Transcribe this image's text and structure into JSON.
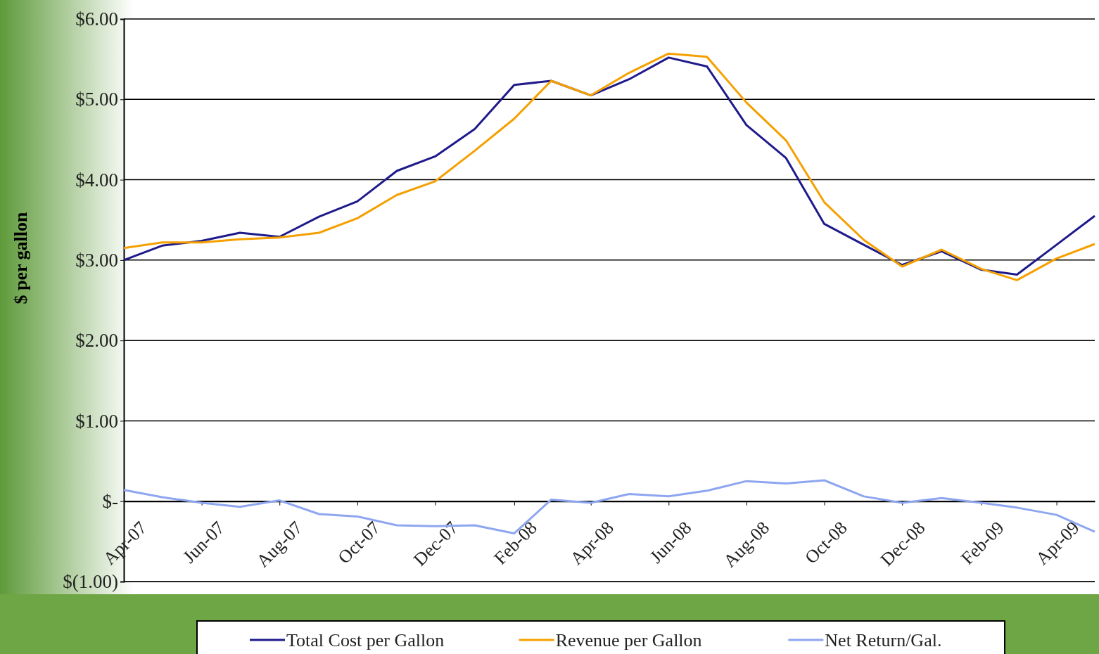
{
  "chart_data": {
    "type": "line",
    "ylabel": "$ per gallon",
    "x": [
      "2007-04",
      "2007-05",
      "2007-06",
      "2007-07",
      "2007-08",
      "2007-09",
      "2007-10",
      "2007-11",
      "2007-12",
      "2008-01",
      "2008-02",
      "2008-03",
      "2008-04",
      "2008-05",
      "2008-06",
      "2008-07",
      "2008-08",
      "2008-09",
      "2008-10",
      "2008-11",
      "2008-12",
      "2009-01",
      "2009-02",
      "2009-03",
      "2009-04",
      "2009-05"
    ],
    "series": [
      {
        "name": "Total Cost per Gallon",
        "color": "#1f1a8a",
        "values": [
          3.0,
          3.18,
          3.24,
          3.34,
          3.29,
          3.54,
          3.73,
          4.11,
          4.29,
          4.63,
          5.18,
          5.23,
          5.05,
          5.25,
          5.52,
          5.41,
          4.68,
          4.27,
          3.45,
          3.19,
          2.94,
          3.11,
          2.88,
          2.82,
          3.19,
          3.55
        ]
      },
      {
        "name": "Revenue per Gallon",
        "color": "#f5a000",
        "values": [
          3.15,
          3.22,
          3.22,
          3.26,
          3.28,
          3.34,
          3.52,
          3.81,
          3.98,
          4.36,
          4.76,
          5.23,
          5.05,
          5.33,
          5.57,
          5.53,
          4.96,
          4.49,
          3.72,
          3.25,
          2.92,
          3.13,
          2.89,
          2.75,
          3.02,
          3.2
        ]
      },
      {
        "name": "Net Return/Gal.",
        "color": "#8ea6f0",
        "values": [
          0.14,
          0.05,
          -0.02,
          -0.07,
          0.01,
          -0.16,
          -0.19,
          -0.3,
          -0.31,
          -0.3,
          -0.4,
          0.02,
          -0.02,
          0.09,
          0.06,
          0.13,
          0.25,
          0.22,
          0.26,
          0.06,
          -0.02,
          0.04,
          -0.02,
          -0.08,
          -0.17,
          -0.38
        ]
      }
    ],
    "xlim": [
      "2007-04",
      "2009-05"
    ],
    "xticks": [
      {
        "value": "2007-04",
        "label": "Apr-07"
      },
      {
        "value": "2007-06",
        "label": "Jun-07"
      },
      {
        "value": "2007-08",
        "label": "Aug-07"
      },
      {
        "value": "2007-10",
        "label": "Oct-07"
      },
      {
        "value": "2007-12",
        "label": "Dec-07"
      },
      {
        "value": "2008-02",
        "label": "Feb-08"
      },
      {
        "value": "2008-04",
        "label": "Apr-08"
      },
      {
        "value": "2008-06",
        "label": "Jun-08"
      },
      {
        "value": "2008-08",
        "label": "Aug-08"
      },
      {
        "value": "2008-10",
        "label": "Oct-08"
      },
      {
        "value": "2008-12",
        "label": "Dec-08"
      },
      {
        "value": "2009-02",
        "label": "Feb-09"
      },
      {
        "value": "2009-04",
        "label": "Apr-09"
      }
    ],
    "ylim": [
      -1,
      6
    ],
    "yticks": [
      {
        "value": -1,
        "label": "$(1.00)"
      },
      {
        "value": 0,
        "label": "$-"
      },
      {
        "value": 1,
        "label": "$1.00"
      },
      {
        "value": 2,
        "label": "$2.00"
      },
      {
        "value": 3,
        "label": "$3.00"
      },
      {
        "value": 4,
        "label": "$4.00"
      },
      {
        "value": 5,
        "label": "$5.00"
      },
      {
        "value": 6,
        "label": "$6.00"
      }
    ],
    "grid": "y",
    "legend": "bottom",
    "marker": "none",
    "line_style": "solid"
  }
}
